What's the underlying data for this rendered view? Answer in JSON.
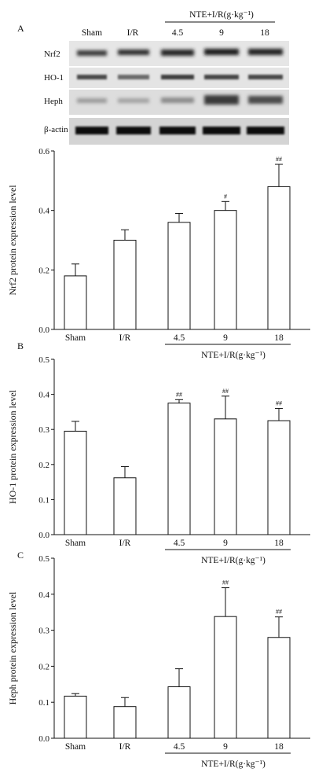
{
  "blot": {
    "panel_letter": "A",
    "lanes": [
      "Sham",
      "I/R",
      "4.5",
      "9",
      "18"
    ],
    "group_label": "NTE+I/R(g·kg⁻¹)",
    "bands": [
      "Nrf2",
      "HO-1",
      "Heph",
      "β-actin"
    ]
  },
  "chart_data": [
    {
      "type": "bar",
      "panel_letter": "",
      "categories": [
        "Sham",
        "I/R",
        "4.5",
        "9",
        "18"
      ],
      "values": [
        0.18,
        0.3,
        0.36,
        0.4,
        0.48
      ],
      "errors": [
        0.04,
        0.035,
        0.03,
        0.03,
        0.075
      ],
      "significance": [
        "",
        "",
        "",
        "#",
        "##"
      ],
      "ylabel": "Nrf2 protein expression level",
      "ylim": [
        0,
        0.6
      ],
      "yticks": [
        "0.0",
        "0.2",
        "0.4",
        "0.6"
      ],
      "group_label": "NTE+I/R(g·kg⁻¹)",
      "grid": false
    },
    {
      "type": "bar",
      "panel_letter": "B",
      "categories": [
        "Sham",
        "I/R",
        "4.5",
        "9",
        "18"
      ],
      "values": [
        0.295,
        0.162,
        0.375,
        0.33,
        0.325
      ],
      "errors": [
        0.028,
        0.032,
        0.01,
        0.065,
        0.035
      ],
      "significance": [
        "",
        "",
        "##",
        "##",
        "##"
      ],
      "ylabel": "HO-1 protein expression level",
      "ylim": [
        0,
        0.5
      ],
      "yticks": [
        "0.0",
        "0.1",
        "0.2",
        "0.3",
        "0.4",
        "0.5"
      ],
      "group_label": "NTE+I/R(g·kg⁻¹)",
      "grid": false
    },
    {
      "type": "bar",
      "panel_letter": "C",
      "categories": [
        "Sham",
        "I/R",
        "4.5",
        "9",
        "18"
      ],
      "values": [
        0.117,
        0.088,
        0.143,
        0.338,
        0.28
      ],
      "errors": [
        0.007,
        0.025,
        0.05,
        0.08,
        0.057
      ],
      "significance": [
        "",
        "",
        "",
        "##",
        "##"
      ],
      "ylabel": "Heph protein expression level",
      "ylim": [
        0,
        0.5
      ],
      "yticks": [
        "0.0",
        "0.1",
        "0.2",
        "0.3",
        "0.4",
        "0.5"
      ],
      "group_label": "NTE+I/R(g·kg⁻¹)",
      "grid": false
    }
  ]
}
